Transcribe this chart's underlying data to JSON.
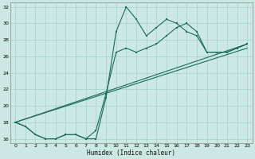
{
  "xlabel": "Humidex (Indice chaleur)",
  "bg_color": "#cce8e4",
  "grid_color": "#aad4d0",
  "line_color": "#1a6b5a",
  "xlim": [
    -0.5,
    23.5
  ],
  "ylim": [
    15.5,
    32.5
  ],
  "xticks": [
    0,
    1,
    2,
    3,
    4,
    5,
    6,
    7,
    8,
    9,
    10,
    11,
    12,
    13,
    14,
    15,
    16,
    17,
    18,
    19,
    20,
    21,
    22,
    23
  ],
  "yticks": [
    16,
    18,
    20,
    22,
    24,
    26,
    28,
    30,
    32
  ],
  "line1_x": [
    0,
    1,
    2,
    3,
    4,
    5,
    6,
    7,
    8,
    9,
    10,
    11,
    12,
    13,
    14,
    15,
    16,
    17,
    18,
    19,
    20,
    21,
    22,
    23
  ],
  "line1_y": [
    18,
    17.5,
    16.5,
    16,
    16,
    16.5,
    16.5,
    16,
    16,
    21,
    29,
    32,
    30.5,
    28.5,
    29.5,
    30.5,
    30,
    29,
    28.5,
    26.5,
    26.5,
    26.5,
    27,
    27.5
  ],
  "line2_x": [
    0,
    1,
    2,
    3,
    4,
    5,
    6,
    7,
    8,
    9,
    10,
    11,
    12,
    13,
    14,
    15,
    16,
    17,
    18,
    19,
    20,
    21,
    22,
    23
  ],
  "line2_y": [
    18,
    17.5,
    16.5,
    16,
    16,
    16.5,
    16.5,
    16,
    17,
    21.5,
    26.5,
    27,
    26.5,
    27,
    27.5,
    28.5,
    29.5,
    30,
    29,
    26.5,
    26.5,
    26.5,
    27,
    27.5
  ],
  "line3_x": [
    0,
    23
  ],
  "line3_y": [
    18,
    27.5
  ],
  "line4_x": [
    0,
    23
  ],
  "line4_y": [
    18,
    27.0
  ]
}
